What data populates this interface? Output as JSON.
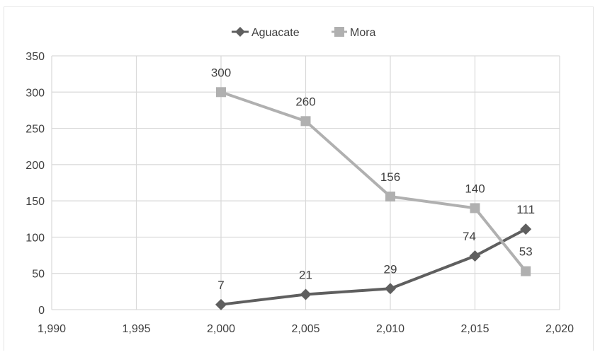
{
  "chart_data": {
    "type": "scatter",
    "title": "",
    "xlabel": "",
    "ylabel": "",
    "xlim": [
      1990,
      2020
    ],
    "ylim": [
      0,
      350
    ],
    "x_ticks": [
      "1,990",
      "1,995",
      "2,000",
      "2,005",
      "2,010",
      "2,015",
      "2,020"
    ],
    "y_ticks": [
      "0",
      "50",
      "100",
      "150",
      "200",
      "250",
      "300",
      "350"
    ],
    "grid": true,
    "legend_position": "top",
    "series": [
      {
        "name": "Aguacate",
        "marker": "diamond",
        "color": "#5f5f5f",
        "x": [
          2000,
          2005,
          2010,
          2015,
          2018
        ],
        "values": [
          7,
          21,
          29,
          74,
          111
        ],
        "labels": [
          "7",
          "21",
          "29",
          "74",
          "111"
        ]
      },
      {
        "name": "Mora",
        "marker": "square",
        "color": "#b0b0b0",
        "x": [
          2000,
          2005,
          2010,
          2015,
          2018
        ],
        "values": [
          300,
          260,
          156,
          140,
          53
        ],
        "labels": [
          "300",
          "260",
          "156",
          "140",
          "53"
        ]
      }
    ]
  },
  "legend": {
    "aguacate_label": "Aguacate",
    "mora_label": "Mora"
  }
}
